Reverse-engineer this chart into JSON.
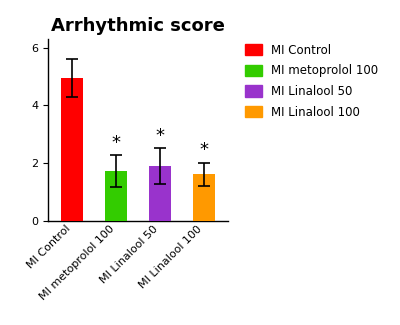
{
  "title": "Arrhythmic score",
  "categories": [
    "MI Control",
    "MI metoprolol 100",
    "MI Linalool 50",
    "MI Linalool 100"
  ],
  "values": [
    4.95,
    1.73,
    1.9,
    1.62
  ],
  "errors_up": [
    0.65,
    0.55,
    0.62,
    0.4
  ],
  "errors_down": [
    0.65,
    0.55,
    0.62,
    0.4
  ],
  "bar_colors": [
    "#ff0000",
    "#33cc00",
    "#9933cc",
    "#ff9900"
  ],
  "legend_labels": [
    "MI Control",
    "MI metoprolol 100",
    "MI Linalool 50",
    "MI Linalool 100"
  ],
  "legend_colors": [
    "#ff0000",
    "#33cc00",
    "#9933cc",
    "#ff9900"
  ],
  "ylim": [
    0,
    6.3
  ],
  "yticks": [
    0,
    2,
    4,
    6
  ],
  "asterisk_indices": [
    1,
    2,
    3
  ],
  "background_color": "#ffffff",
  "title_fontsize": 13,
  "tick_fontsize": 8,
  "legend_fontsize": 8.5,
  "bar_width": 0.5,
  "asterisk_fontsize": 13
}
